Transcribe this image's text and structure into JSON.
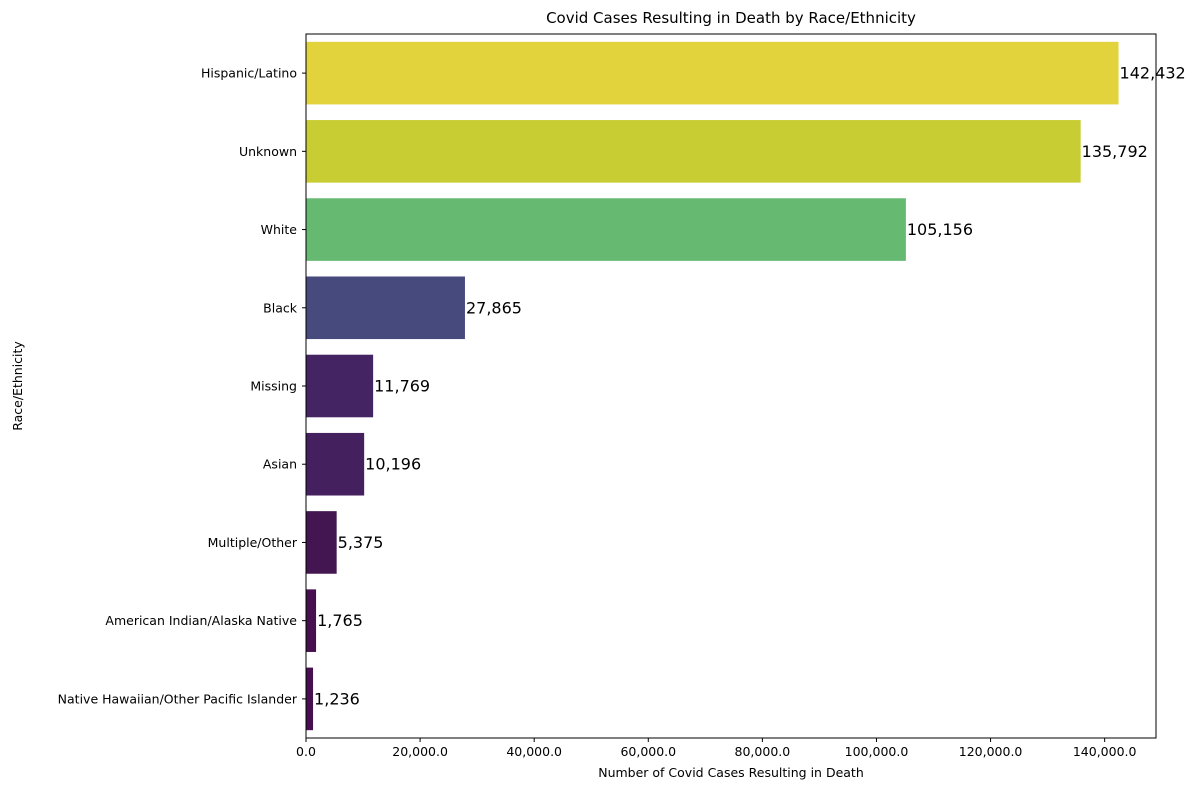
{
  "chart_data": {
    "type": "bar",
    "orientation": "horizontal",
    "title": "Covid Cases Resulting in Death by Race/Ethnicity",
    "xlabel": "Number of Covid Cases Resulting in Death",
    "ylabel": "Race/Ethnicity",
    "xlim": [
      0,
      149000
    ],
    "x_ticks": [
      0,
      20000,
      40000,
      60000,
      80000,
      100000,
      120000,
      140000
    ],
    "x_tick_labels": [
      "0.0",
      "20,000.0",
      "40,000.0",
      "60,000.0",
      "80,000.0",
      "100,000.0",
      "120,000.0",
      "140,000.0"
    ],
    "grid": false,
    "legend": "none",
    "categories": [
      "Hispanic/Latino",
      "Unknown",
      "White",
      "Black",
      "Missing",
      "Asian",
      "Multiple/Other",
      "American Indian/Alaska Native",
      "Native Hawaiian/Other Pacific Islander"
    ],
    "values": [
      142432,
      135792,
      105156,
      27865,
      11769,
      10196,
      5375,
      1765,
      1236
    ],
    "value_labels": [
      "142,432",
      "135,792",
      "105,156",
      "27,865",
      "11,769",
      "10,196",
      "5,375",
      "1,765",
      "1,236"
    ],
    "colors": [
      "#e2d33d",
      "#c8cd34",
      "#65b970",
      "#474a7d",
      "#452464",
      "#45205f",
      "#431551",
      "#470f4f",
      "#470f4f"
    ]
  }
}
